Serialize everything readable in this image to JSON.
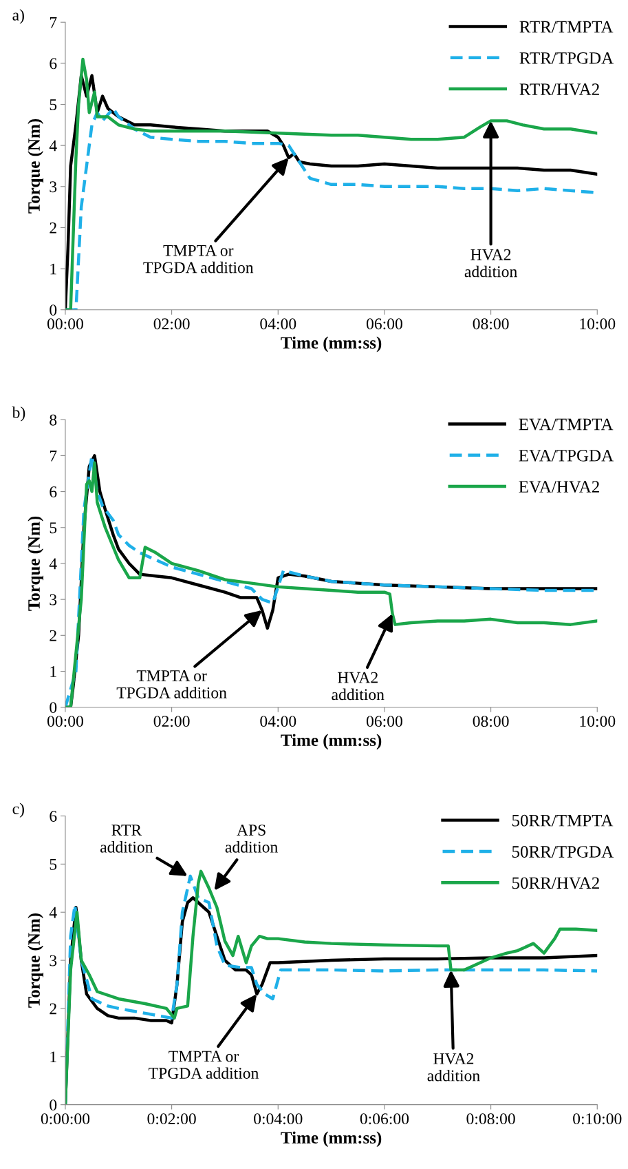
{
  "chart_data": [
    {
      "type": "line",
      "title": "a)",
      "xlabel": "Time (mm:ss)",
      "ylabel": "Torque (Nm)",
      "xlim": [
        0,
        10
      ],
      "ylim": [
        0,
        7
      ],
      "xticks": [
        {
          "value": 0,
          "label": "00:00"
        },
        {
          "value": 2,
          "label": "02:00"
        },
        {
          "value": 4,
          "label": "04:00"
        },
        {
          "value": 6,
          "label": "06:00"
        },
        {
          "value": 8,
          "label": "08:00"
        },
        {
          "value": 10,
          "label": "10:00"
        }
      ],
      "yticks": [
        0,
        1,
        2,
        3,
        4,
        5,
        6,
        7
      ],
      "legend": "top right",
      "marker": "none",
      "series": [
        {
          "name": "RTR/TMPTA",
          "color": "#000000",
          "line_style": "solid",
          "x": [
            0,
            0.05,
            0.1,
            0.2,
            0.3,
            0.4,
            0.5,
            0.6,
            0.7,
            0.8,
            1.0,
            1.3,
            1.6,
            2.0,
            2.5,
            3.0,
            3.5,
            3.8,
            4.0,
            4.1,
            4.2,
            4.3,
            4.4,
            4.6,
            5.0,
            5.5,
            6.0,
            6.5,
            7.0,
            7.5,
            8.0,
            8.5,
            9.0,
            9.5,
            10
          ],
          "values": [
            0,
            1.5,
            3.5,
            4.5,
            5.7,
            5.2,
            5.7,
            4.8,
            5.2,
            4.9,
            4.7,
            4.5,
            4.5,
            4.45,
            4.4,
            4.35,
            4.35,
            4.35,
            4.2,
            4.0,
            3.7,
            3.8,
            3.6,
            3.55,
            3.5,
            3.5,
            3.55,
            3.5,
            3.45,
            3.45,
            3.45,
            3.45,
            3.4,
            3.4,
            3.3
          ]
        },
        {
          "name": "RTR/TPGDA",
          "color": "#1fb0e8",
          "line_style": "dashed",
          "x": [
            0,
            0.2,
            0.3,
            0.4,
            0.5,
            0.6,
            0.7,
            0.9,
            1.0,
            1.3,
            1.6,
            2.0,
            2.5,
            3.0,
            3.5,
            4.0,
            4.2,
            4.4,
            4.6,
            5.0,
            5.5,
            6.0,
            6.5,
            7.0,
            7.5,
            8.0,
            8.5,
            9.0,
            9.5,
            10
          ],
          "values": [
            0,
            0,
            2.5,
            3.5,
            4.5,
            4.8,
            4.6,
            4.9,
            4.7,
            4.4,
            4.2,
            4.15,
            4.1,
            4.1,
            4.05,
            4.05,
            4.0,
            3.6,
            3.2,
            3.05,
            3.05,
            3.0,
            3.0,
            3.0,
            2.95,
            2.95,
            2.9,
            2.95,
            2.9,
            2.85
          ]
        },
        {
          "name": "RTR/HVA2",
          "color": "#1aa64a",
          "line_style": "solid",
          "x": [
            0,
            0.1,
            0.2,
            0.25,
            0.33,
            0.4,
            0.45,
            0.55,
            0.6,
            0.8,
            1.0,
            1.3,
            1.6,
            2.0,
            3.0,
            4.0,
            5.0,
            5.5,
            6.0,
            6.5,
            7.0,
            7.5,
            7.8,
            8.0,
            8.3,
            8.6,
            9.0,
            9.5,
            10
          ],
          "values": [
            0,
            0,
            3.7,
            5.0,
            6.1,
            5.6,
            4.8,
            5.3,
            4.7,
            4.7,
            4.5,
            4.4,
            4.35,
            4.35,
            4.35,
            4.3,
            4.25,
            4.25,
            4.2,
            4.15,
            4.15,
            4.2,
            4.45,
            4.6,
            4.6,
            4.5,
            4.4,
            4.4,
            4.3
          ]
        }
      ],
      "annotations": [
        {
          "text": "TMPTA or\nTPGDA addition",
          "x": 4.2,
          "y": 3.7
        },
        {
          "text": "HVA2\naddition",
          "x": 8.0,
          "y": 4.6
        }
      ]
    },
    {
      "type": "line",
      "title": "b)",
      "xlabel": "Time (mm:ss)",
      "ylabel": "Torque (Nm)",
      "xlim": [
        0,
        10
      ],
      "ylim": [
        0,
        8
      ],
      "xticks": [
        {
          "value": 0,
          "label": "00:00"
        },
        {
          "value": 2,
          "label": "02:00"
        },
        {
          "value": 4,
          "label": "04:00"
        },
        {
          "value": 6,
          "label": "06:00"
        },
        {
          "value": 8,
          "label": "08:00"
        },
        {
          "value": 10,
          "label": "10:00"
        }
      ],
      "yticks": [
        0,
        1,
        2,
        3,
        4,
        5,
        6,
        7,
        8
      ],
      "legend": "top right",
      "marker": "none",
      "series": [
        {
          "name": "EVA/TMPTA",
          "color": "#000000",
          "line_style": "solid",
          "x": [
            0,
            0.1,
            0.15,
            0.25,
            0.35,
            0.45,
            0.55,
            0.65,
            0.75,
            0.9,
            1.0,
            1.2,
            1.4,
            1.7,
            2.0,
            2.5,
            3.0,
            3.3,
            3.6,
            3.7,
            3.8,
            3.9,
            4.0,
            4.2,
            4.5,
            5.0,
            5.5,
            6.0,
            7.0,
            8.0,
            9.0,
            10
          ],
          "values": [
            0,
            0,
            0.6,
            2,
            5,
            6.7,
            7.0,
            6,
            5.5,
            4.8,
            4.4,
            4.0,
            3.7,
            3.65,
            3.6,
            3.4,
            3.2,
            3.05,
            3.05,
            2.7,
            2.2,
            2.7,
            3.6,
            3.7,
            3.65,
            3.5,
            3.45,
            3.4,
            3.35,
            3.3,
            3.3,
            3.3
          ]
        },
        {
          "name": "EVA/TPGDA",
          "color": "#1fb0e8",
          "line_style": "dashed",
          "x": [
            0,
            0.1,
            0.2,
            0.35,
            0.5,
            0.6,
            0.7,
            0.9,
            1.0,
            1.2,
            1.4,
            1.7,
            2.0,
            2.5,
            3.0,
            3.5,
            3.7,
            3.9,
            4.1,
            4.5,
            5.0,
            6.0,
            7.0,
            8.0,
            9.0,
            10
          ],
          "values": [
            0,
            0.5,
            1.0,
            5.5,
            7.0,
            6.0,
            5.6,
            5.2,
            4.8,
            4.5,
            4.3,
            4.1,
            3.9,
            3.7,
            3.5,
            3.3,
            3.0,
            2.9,
            3.8,
            3.65,
            3.5,
            3.4,
            3.35,
            3.3,
            3.25,
            3.25
          ]
        },
        {
          "name": "EVA/HVA2",
          "color": "#1aa64a",
          "line_style": "solid",
          "x": [
            0,
            0.1,
            0.3,
            0.4,
            0.45,
            0.5,
            0.55,
            0.6,
            0.75,
            1.0,
            1.2,
            1.4,
            1.5,
            1.7,
            2.0,
            2.5,
            3.0,
            3.5,
            4.0,
            4.5,
            5.0,
            5.5,
            6.0,
            6.1,
            6.15,
            6.2,
            6.5,
            7.0,
            7.5,
            8.0,
            8.5,
            9.0,
            9.5,
            10
          ],
          "values": [
            0,
            0,
            3,
            6.2,
            6.3,
            6.0,
            6.8,
            5.7,
            5.0,
            4.1,
            3.6,
            3.6,
            4.45,
            4.3,
            4.0,
            3.8,
            3.55,
            3.45,
            3.35,
            3.3,
            3.25,
            3.2,
            3.2,
            3.15,
            2.6,
            2.3,
            2.35,
            2.4,
            2.4,
            2.45,
            2.35,
            2.35,
            2.3,
            2.4
          ]
        }
      ],
      "annotations": [
        {
          "text": "TMPTA or\nTPGDA addition",
          "x": 3.7,
          "y": 2.7
        },
        {
          "text": "HVA2\naddition",
          "x": 6.15,
          "y": 2.6
        }
      ]
    },
    {
      "type": "line",
      "title": "c)",
      "xlabel": "Time (mm:ss)",
      "ylabel": "Torque (Nm)",
      "xlim": [
        0,
        10
      ],
      "ylim": [
        0,
        6
      ],
      "xticks": [
        {
          "value": 0,
          "label": "0:00:00"
        },
        {
          "value": 2,
          "label": "0:02:00"
        },
        {
          "value": 4,
          "label": "0:04:00"
        },
        {
          "value": 6,
          "label": "0:06:00"
        },
        {
          "value": 8,
          "label": "0:08:00"
        },
        {
          "value": 10,
          "label": "0:10:00"
        }
      ],
      "yticks": [
        0,
        1,
        2,
        3,
        4,
        5,
        6
      ],
      "legend": "top right",
      "marker": "none",
      "series": [
        {
          "name": "50RR/TMPTA",
          "color": "#000000",
          "line_style": "solid",
          "x": [
            0,
            0.1,
            0.2,
            0.3,
            0.4,
            0.6,
            0.8,
            1.0,
            1.3,
            1.6,
            1.9,
            2.0,
            2.1,
            2.2,
            2.3,
            2.4,
            2.6,
            2.7,
            2.85,
            3.0,
            3.2,
            3.4,
            3.5,
            3.6,
            3.7,
            3.85,
            4.0,
            5.0,
            6.0,
            7.0,
            8.0,
            9.0,
            10
          ],
          "values": [
            0,
            3.0,
            4.1,
            3.0,
            2.3,
            2.0,
            1.85,
            1.8,
            1.8,
            1.75,
            1.75,
            1.7,
            2.5,
            3.8,
            4.2,
            4.3,
            4.1,
            4.0,
            3.5,
            3.0,
            2.8,
            2.8,
            2.7,
            2.3,
            2.5,
            2.95,
            2.95,
            3.0,
            3.03,
            3.03,
            3.05,
            3.05,
            3.1
          ]
        },
        {
          "name": "50RR/TPGDA",
          "color": "#1fb0e8",
          "line_style": "dashed",
          "x": [
            0,
            0.1,
            0.18,
            0.3,
            0.5,
            0.8,
            1.0,
            1.5,
            2.0,
            2.1,
            2.2,
            2.35,
            2.5,
            2.7,
            2.85,
            3.0,
            3.3,
            3.5,
            3.6,
            3.75,
            3.9,
            4.05,
            5.0,
            6.0,
            7.0,
            8.0,
            9.0,
            10
          ],
          "values": [
            0,
            3.5,
            4.15,
            3.0,
            2.2,
            2.05,
            2.0,
            1.9,
            1.8,
            2.5,
            4.0,
            4.75,
            4.3,
            4.2,
            3.3,
            2.9,
            2.85,
            2.85,
            2.5,
            2.3,
            2.2,
            2.8,
            2.8,
            2.78,
            2.8,
            2.8,
            2.8,
            2.78
          ]
        },
        {
          "name": "50RR/HVA2",
          "color": "#1aa64a",
          "line_style": "solid",
          "x": [
            0,
            0.1,
            0.22,
            0.3,
            0.45,
            0.6,
            1.0,
            1.5,
            1.9,
            2.05,
            2.1,
            2.3,
            2.4,
            2.5,
            2.55,
            2.7,
            2.85,
            3.0,
            3.15,
            3.25,
            3.4,
            3.5,
            3.65,
            3.8,
            4.0,
            4.5,
            5.0,
            6.0,
            7.0,
            7.2,
            7.25,
            7.5,
            7.7,
            8.0,
            8.3,
            8.5,
            8.8,
            9.0,
            9.2,
            9.3,
            9.6,
            10
          ],
          "values": [
            0,
            2.8,
            4.0,
            3.0,
            2.7,
            2.35,
            2.2,
            2.1,
            2.0,
            1.8,
            2.0,
            2.05,
            3.5,
            4.6,
            4.85,
            4.5,
            4.1,
            3.4,
            3.1,
            3.5,
            2.95,
            3.3,
            3.5,
            3.45,
            3.45,
            3.38,
            3.35,
            3.32,
            3.3,
            3.3,
            2.8,
            2.8,
            2.9,
            3.05,
            3.15,
            3.2,
            3.35,
            3.15,
            3.45,
            3.65,
            3.65,
            3.62
          ]
        }
      ],
      "annotations": [
        {
          "text": "RTR\naddition",
          "x": 2.3,
          "y": 4.75
        },
        {
          "text": "APS\naddition",
          "x": 2.8,
          "y": 4.45
        },
        {
          "text": "TMPTA or\nTPGDA addition",
          "x": 3.6,
          "y": 2.3
        },
        {
          "text": "HVA2\naddition",
          "x": 7.25,
          "y": 2.8
        }
      ]
    }
  ]
}
